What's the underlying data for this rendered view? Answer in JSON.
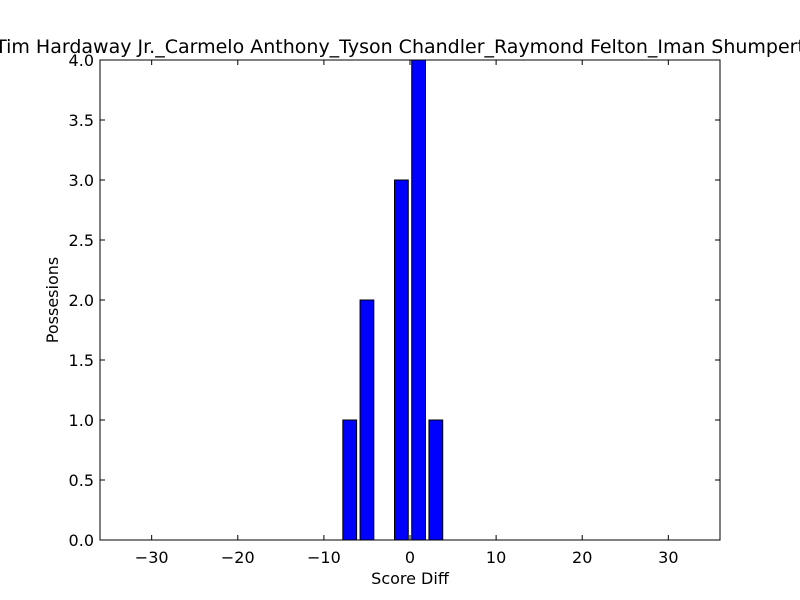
{
  "chart_data": {
    "type": "bar",
    "title": "Tim Hardaway Jr._Carmelo Anthony_Tyson Chandler_Raymond Felton_Iman Shumpert",
    "xlabel": "Score Diff",
    "ylabel": "Possesions",
    "xlim": [
      -36,
      36
    ],
    "ylim": [
      0,
      4.0
    ],
    "bar_width": 1.6,
    "x": [
      -7,
      -5,
      -1,
      1,
      3
    ],
    "values": [
      1,
      2,
      3,
      4,
      1
    ],
    "xticks": [
      -30,
      -20,
      -10,
      0,
      10,
      20,
      30
    ],
    "xtick_labels": [
      "−30",
      "−20",
      "−10",
      "0",
      "10",
      "20",
      "30"
    ],
    "yticks": [
      0.0,
      0.5,
      1.0,
      1.5,
      2.0,
      2.5,
      3.0,
      3.5,
      4.0
    ],
    "ytick_labels": [
      "0.0",
      "0.5",
      "1.0",
      "1.5",
      "2.0",
      "2.5",
      "3.0",
      "3.5",
      "4.0"
    ],
    "bar_color": "#0000ff",
    "edge_color": "#000000",
    "grid": false
  }
}
